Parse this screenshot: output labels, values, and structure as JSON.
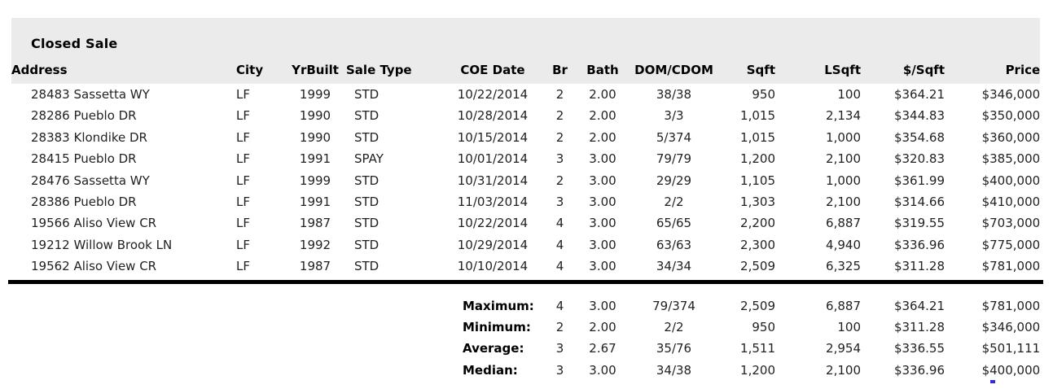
{
  "report": {
    "title": "Closed Sale",
    "columns": [
      "Address",
      "City",
      "YrBuilt",
      "Sale Type",
      "COE Date",
      "Br",
      "Bath",
      "DOM/CDOM",
      "Sqft",
      "LSqft",
      "$/Sqft",
      "Price"
    ],
    "rows": [
      [
        "28483 Sassetta WY",
        "LF",
        "1999",
        "STD",
        "10/22/2014",
        "2",
        "2.00",
        "38/38",
        "950",
        "100",
        "$364.21",
        "$346,000"
      ],
      [
        "28286 Pueblo DR",
        "LF",
        "1990",
        "STD",
        "10/28/2014",
        "2",
        "2.00",
        "3/3",
        "1,015",
        "2,134",
        "$344.83",
        "$350,000"
      ],
      [
        "28383 Klondike DR",
        "LF",
        "1990",
        "STD",
        "10/15/2014",
        "2",
        "2.00",
        "5/374",
        "1,015",
        "1,000",
        "$354.68",
        "$360,000"
      ],
      [
        "28415 Pueblo DR",
        "LF",
        "1991",
        "SPAY",
        "10/01/2014",
        "3",
        "3.00",
        "79/79",
        "1,200",
        "2,100",
        "$320.83",
        "$385,000"
      ],
      [
        "28476 Sassetta WY",
        "LF",
        "1999",
        "STD",
        "10/31/2014",
        "2",
        "3.00",
        "29/29",
        "1,105",
        "1,000",
        "$361.99",
        "$400,000"
      ],
      [
        "28386 Pueblo DR",
        "LF",
        "1991",
        "STD",
        "11/03/2014",
        "3",
        "3.00",
        "2/2",
        "1,303",
        "2,100",
        "$314.66",
        "$410,000"
      ],
      [
        "19566 Aliso View CR",
        "LF",
        "1987",
        "STD",
        "10/22/2014",
        "4",
        "3.00",
        "65/65",
        "2,200",
        "6,887",
        "$319.55",
        "$703,000"
      ],
      [
        "19212 Willow Brook LN",
        "LF",
        "1992",
        "STD",
        "10/29/2014",
        "4",
        "3.00",
        "63/63",
        "2,300",
        "4,940",
        "$336.96",
        "$775,000"
      ],
      [
        "19562 Aliso View CR",
        "LF",
        "1987",
        "STD",
        "10/10/2014",
        "4",
        "3.00",
        "34/34",
        "2,509",
        "6,325",
        "$311.28",
        "$781,000"
      ]
    ],
    "summary": [
      {
        "label": "Maximum:",
        "values": [
          "4",
          "3.00",
          "79/374",
          "2,509",
          "6,887",
          "$364.21",
          "$781,000"
        ]
      },
      {
        "label": "Minimum:",
        "values": [
          "2",
          "2.00",
          "2/2",
          "950",
          "100",
          "$311.28",
          "$346,000"
        ]
      },
      {
        "label": "Average:",
        "values": [
          "3",
          "2.67",
          "35/76",
          "1,511",
          "2,954",
          "$336.55",
          "$501,111"
        ]
      },
      {
        "label": "Median:",
        "values": [
          "3",
          "3.00",
          "34/38",
          "1,200",
          "2,100",
          "$336.96",
          "$400,000"
        ]
      }
    ]
  },
  "colors": {
    "header_background": "#ebebeb",
    "divider_rule": "#000000",
    "body_text": "#222222",
    "header_text": "#000000",
    "artifact_blue": "#2a2af0",
    "page_background": "#ffffff"
  }
}
